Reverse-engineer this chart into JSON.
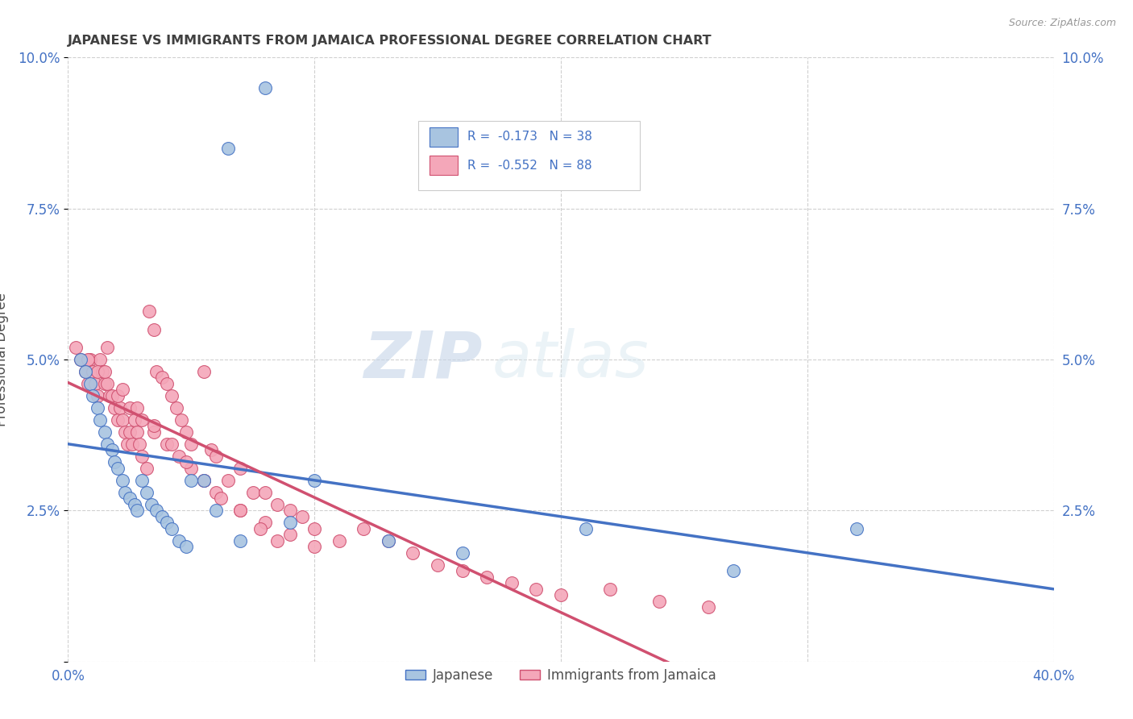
{
  "title": "JAPANESE VS IMMIGRANTS FROM JAMAICA PROFESSIONAL DEGREE CORRELATION CHART",
  "source": "Source: ZipAtlas.com",
  "ylabel": "Professional Degree",
  "watermark_zip": "ZIP",
  "watermark_atlas": "atlas",
  "xlim": [
    0.0,
    0.4
  ],
  "ylim": [
    0.0,
    0.1
  ],
  "yticks": [
    0.0,
    0.025,
    0.05,
    0.075,
    0.1
  ],
  "ytick_labels": [
    "",
    "2.5%",
    "5.0%",
    "7.5%",
    "10.0%"
  ],
  "xticks": [
    0.0,
    0.1,
    0.2,
    0.3,
    0.4
  ],
  "xtick_labels": [
    "0.0%",
    "",
    "",
    "",
    "40.0%"
  ],
  "legend_R1": "-0.173",
  "legend_N1": "38",
  "legend_R2": "-0.552",
  "legend_N2": "88",
  "legend_label1": "Japanese",
  "legend_label2": "Immigrants from Jamaica",
  "color_japanese": "#a8c4e0",
  "color_jamaica": "#f4a7b9",
  "color_line_japanese": "#4472c4",
  "color_line_jamaica": "#d05070",
  "background_color": "#ffffff",
  "title_color": "#404040",
  "axis_color": "#4472c4",
  "japanese_x": [
    0.005,
    0.007,
    0.009,
    0.01,
    0.012,
    0.013,
    0.015,
    0.016,
    0.018,
    0.019,
    0.02,
    0.022,
    0.023,
    0.025,
    0.027,
    0.028,
    0.03,
    0.032,
    0.034,
    0.036,
    0.038,
    0.04,
    0.042,
    0.045,
    0.048,
    0.05,
    0.055,
    0.06,
    0.065,
    0.07,
    0.08,
    0.09,
    0.1,
    0.13,
    0.16,
    0.21,
    0.27,
    0.32
  ],
  "japanese_y": [
    0.05,
    0.048,
    0.046,
    0.044,
    0.042,
    0.04,
    0.038,
    0.036,
    0.035,
    0.033,
    0.032,
    0.03,
    0.028,
    0.027,
    0.026,
    0.025,
    0.03,
    0.028,
    0.026,
    0.025,
    0.024,
    0.023,
    0.022,
    0.02,
    0.019,
    0.03,
    0.03,
    0.025,
    0.085,
    0.02,
    0.095,
    0.023,
    0.03,
    0.02,
    0.018,
    0.022,
    0.015,
    0.022
  ],
  "jamaica_x": [
    0.003,
    0.005,
    0.007,
    0.008,
    0.009,
    0.01,
    0.011,
    0.012,
    0.013,
    0.014,
    0.015,
    0.016,
    0.017,
    0.018,
    0.019,
    0.02,
    0.021,
    0.022,
    0.023,
    0.024,
    0.025,
    0.026,
    0.027,
    0.028,
    0.029,
    0.03,
    0.032,
    0.033,
    0.035,
    0.036,
    0.038,
    0.04,
    0.042,
    0.044,
    0.046,
    0.048,
    0.05,
    0.055,
    0.058,
    0.06,
    0.065,
    0.07,
    0.075,
    0.08,
    0.085,
    0.09,
    0.095,
    0.1,
    0.11,
    0.12,
    0.13,
    0.14,
    0.15,
    0.16,
    0.17,
    0.18,
    0.19,
    0.2,
    0.22,
    0.24,
    0.26,
    0.008,
    0.012,
    0.016,
    0.02,
    0.025,
    0.03,
    0.035,
    0.04,
    0.045,
    0.05,
    0.055,
    0.06,
    0.07,
    0.08,
    0.09,
    0.1,
    0.015,
    0.022,
    0.028,
    0.035,
    0.042,
    0.048,
    0.055,
    0.062,
    0.07,
    0.078,
    0.085
  ],
  "jamaica_y": [
    0.052,
    0.05,
    0.048,
    0.046,
    0.05,
    0.048,
    0.046,
    0.044,
    0.05,
    0.048,
    0.046,
    0.052,
    0.044,
    0.044,
    0.042,
    0.04,
    0.042,
    0.04,
    0.038,
    0.036,
    0.038,
    0.036,
    0.04,
    0.038,
    0.036,
    0.034,
    0.032,
    0.058,
    0.055,
    0.048,
    0.047,
    0.046,
    0.044,
    0.042,
    0.04,
    0.038,
    0.036,
    0.048,
    0.035,
    0.034,
    0.03,
    0.032,
    0.028,
    0.028,
    0.026,
    0.025,
    0.024,
    0.022,
    0.02,
    0.022,
    0.02,
    0.018,
    0.016,
    0.015,
    0.014,
    0.013,
    0.012,
    0.011,
    0.012,
    0.01,
    0.009,
    0.05,
    0.048,
    0.046,
    0.044,
    0.042,
    0.04,
    0.038,
    0.036,
    0.034,
    0.032,
    0.03,
    0.028,
    0.025,
    0.023,
    0.021,
    0.019,
    0.048,
    0.045,
    0.042,
    0.039,
    0.036,
    0.033,
    0.03,
    0.027,
    0.025,
    0.022,
    0.02
  ]
}
